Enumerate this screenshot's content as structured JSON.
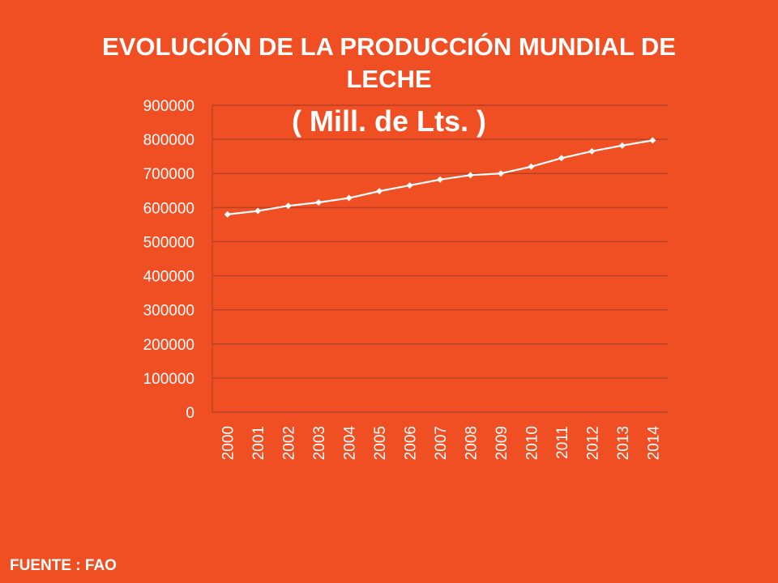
{
  "slide": {
    "title_line1": "EVOLUCIÓN DE LA PRODUCCIÓN MUNDIAL DE",
    "title_line2": "LECHE",
    "subtitle": "( Mill. de Lts. )",
    "source": "FUENTE : FAO"
  },
  "colors": {
    "background": "#F04E23",
    "line": "#FFFFFF",
    "grid": "#A8402A",
    "text": "#FFFFFF"
  },
  "chart_data": {
    "type": "line",
    "title": "EVOLUCIÓN DE LA PRODUCCIÓN MUNDIAL DE LECHE",
    "subtitle": "( Mill. de Lts. )",
    "xlabel": "",
    "ylabel": "",
    "x": [
      "2000",
      "2001",
      "2002",
      "2003",
      "2004",
      "2005",
      "2006",
      "2007",
      "2008",
      "2009",
      "2010",
      "2011",
      "2012",
      "2013",
      "2014"
    ],
    "series": [
      {
        "values": [
          580000,
          590000,
          605000,
          615000,
          628000,
          648000,
          665000,
          682000,
          695000,
          700000,
          720000,
          745000,
          765000,
          782000,
          797000
        ]
      }
    ],
    "ylim": [
      0,
      900000
    ],
    "yticks": [
      "0",
      "100000",
      "200000",
      "300000",
      "400000",
      "500000",
      "600000",
      "700000",
      "800000",
      "900000"
    ],
    "grid": true,
    "legend": "none",
    "marker": "diamond"
  }
}
